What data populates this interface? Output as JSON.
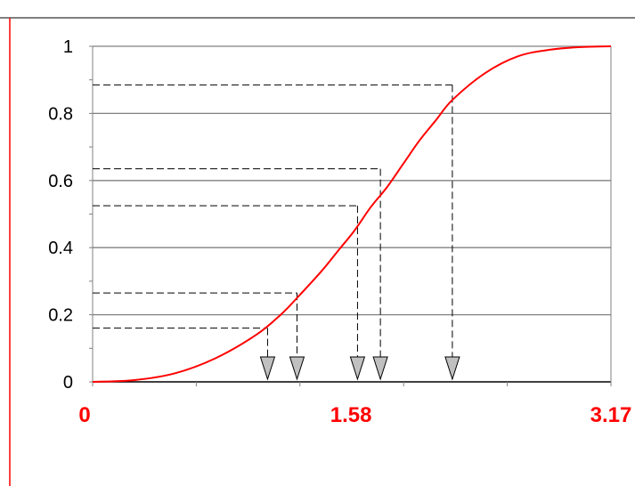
{
  "chart_data": {
    "type": "line",
    "title": "",
    "xlabel": "",
    "ylabel": "",
    "xlim": [
      0,
      3.17
    ],
    "ylim": [
      0,
      1
    ],
    "grid": true,
    "y_ticks": [
      0,
      0.2,
      0.4,
      0.6,
      0.8,
      1
    ],
    "y_tick_labels": [
      "0",
      "0.2",
      "0.4",
      "0.6",
      "0.8",
      "1"
    ],
    "x_tick_labels": [
      {
        "value": 0,
        "label": "0"
      },
      {
        "value": 1.58,
        "label": "1.58"
      },
      {
        "value": 3.17,
        "label": "3.17"
      }
    ],
    "series": [
      {
        "color": "#ff0000",
        "x": [
          0,
          0.25,
          0.5,
          0.75,
          1.0,
          1.15,
          1.25,
          1.4,
          1.5,
          1.6,
          1.7,
          1.8,
          1.9,
          2.0,
          2.1,
          2.2,
          2.4,
          2.6,
          2.8,
          3.0,
          3.17
        ],
        "y": [
          0,
          0.005,
          0.025,
          0.07,
          0.14,
          0.2,
          0.25,
          0.33,
          0.39,
          0.45,
          0.52,
          0.58,
          0.65,
          0.72,
          0.78,
          0.84,
          0.92,
          0.97,
          0.99,
          0.998,
          1.0
        ]
      }
    ],
    "annotations": [
      {
        "x": 1.07,
        "y": 0.16
      },
      {
        "x": 1.25,
        "y": 0.265
      },
      {
        "x": 1.62,
        "y": 0.525
      },
      {
        "x": 1.76,
        "y": 0.635
      },
      {
        "x": 2.2,
        "y": 0.885
      }
    ],
    "colors": {
      "curve": "#ff0000",
      "x_tick_labels": "#ff0000",
      "grid": "#808080",
      "frame_line": "#ff0000",
      "arrow_fill": "#c0c0c0"
    }
  }
}
